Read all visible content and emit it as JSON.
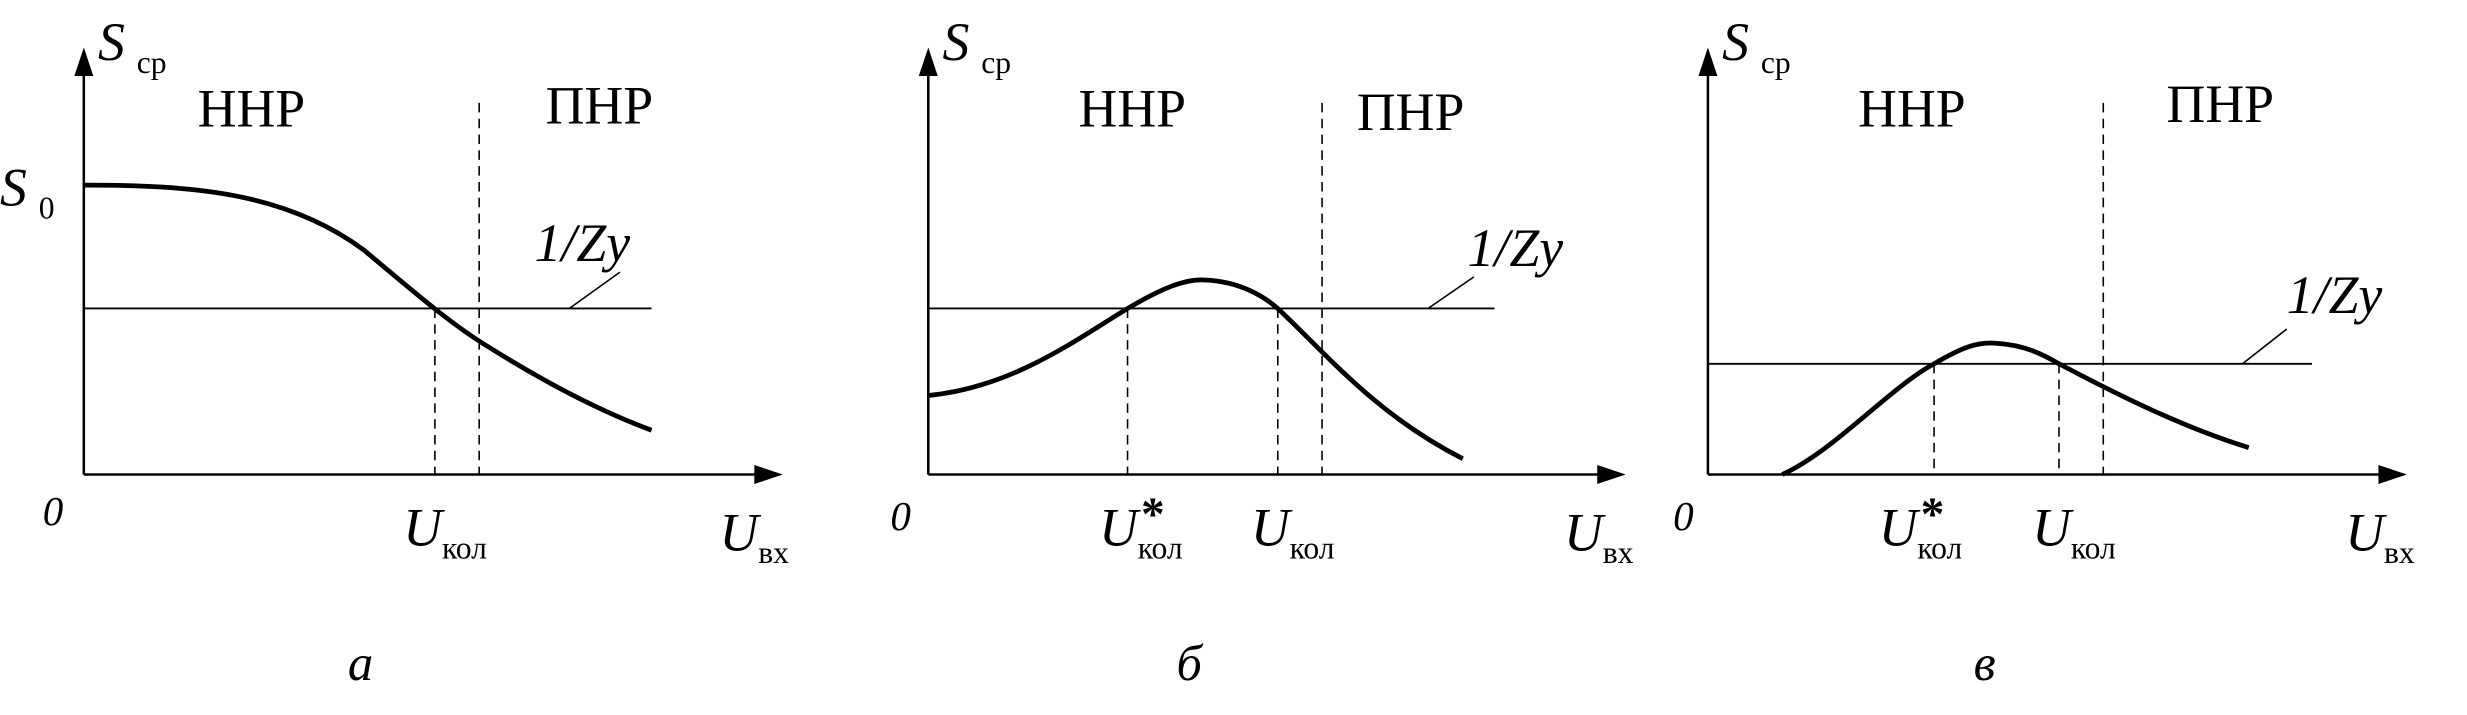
{
  "panels": [
    {
      "caption": "а",
      "y_axis": {
        "symbol": "S",
        "subscript": "ср"
      },
      "origin": "0",
      "x_axis": {
        "symbol": "U",
        "subscript": "вх"
      },
      "stable_region": "ННР",
      "unstable_region": "ПНР",
      "line_label": "1/Zу",
      "y_marker": {
        "symbol": "S",
        "subscript": "0"
      },
      "x_markers": [
        {
          "symbol": "U",
          "subscript": "кол"
        }
      ]
    },
    {
      "caption": "б",
      "y_axis": {
        "symbol": "S",
        "subscript": "ср"
      },
      "origin": "0",
      "x_axis": {
        "symbol": "U",
        "subscript": "вх"
      },
      "stable_region": "ННР",
      "unstable_region": "ПНР",
      "line_label": "1/Zу",
      "x_markers": [
        {
          "symbol": "U",
          "superscript": "*",
          "subscript": "кол"
        },
        {
          "symbol": "U",
          "subscript": "кол"
        }
      ]
    },
    {
      "caption": "в",
      "y_axis": {
        "symbol": "S",
        "subscript": "ср"
      },
      "origin": "0",
      "x_axis": {
        "symbol": "U",
        "subscript": "вх"
      },
      "stable_region": "ННР",
      "unstable_region": "ПНР",
      "line_label": "1/Zу",
      "x_markers": [
        {
          "symbol": "U",
          "superscript": "*",
          "subscript": "кол"
        },
        {
          "symbol": "U",
          "subscript": "кол"
        }
      ]
    }
  ]
}
